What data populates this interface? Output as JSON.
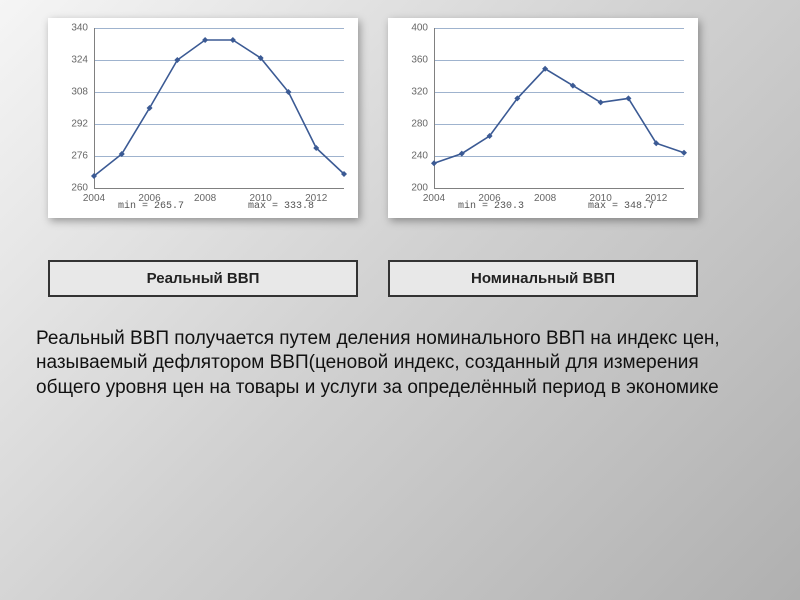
{
  "chart_left": {
    "type": "line",
    "years": [
      2004,
      2005,
      2006,
      2007,
      2008,
      2009,
      2010,
      2011,
      2012,
      2013
    ],
    "values": [
      266,
      277,
      300,
      324,
      334,
      334,
      325,
      308,
      280,
      267
    ],
    "x_ticks": [
      2004,
      2006,
      2008,
      2010,
      2012
    ],
    "y_ticks": [
      260,
      276,
      292,
      308,
      324,
      340
    ],
    "ylim": [
      260,
      340
    ],
    "xlim": [
      2004,
      2013
    ],
    "line_color": "#3b5a94",
    "marker_color": "#3b5a94",
    "grid_color": "#9fb3ce",
    "axis_color": "#808080",
    "background_color": "#ffffff",
    "tick_fontsize": 10,
    "line_width": 1.6,
    "marker_radius": 3,
    "min_label": "min = 265.7",
    "max_label": "max = 333.8"
  },
  "chart_right": {
    "type": "line",
    "years": [
      2004,
      2005,
      2006,
      2007,
      2008,
      2009,
      2010,
      2011,
      2012,
      2013
    ],
    "values": [
      231,
      243,
      265,
      312,
      349,
      328,
      307,
      312,
      256,
      244
    ],
    "x_ticks": [
      2004,
      2006,
      2008,
      2010,
      2012
    ],
    "y_ticks": [
      200,
      240,
      280,
      320,
      360,
      400
    ],
    "ylim": [
      200,
      400
    ],
    "xlim": [
      2004,
      2013
    ],
    "line_color": "#3b5a94",
    "marker_color": "#3b5a94",
    "grid_color": "#9fb3ce",
    "axis_color": "#808080",
    "background_color": "#ffffff",
    "tick_fontsize": 10,
    "line_width": 1.6,
    "marker_radius": 3,
    "min_label": "min = 230.3",
    "max_label": "max = 348.7"
  },
  "labels": {
    "left": "Реальный ВВП",
    "right": "Номинальный ВВП"
  },
  "body_text": "Реальный ВВП получается путем деления номинального ВВП на индекс цен, называемый дефлятором ВВП(ценовой индекс, созданный для измерения общего уровня цен на товары и услуги за определённый период в экономике"
}
